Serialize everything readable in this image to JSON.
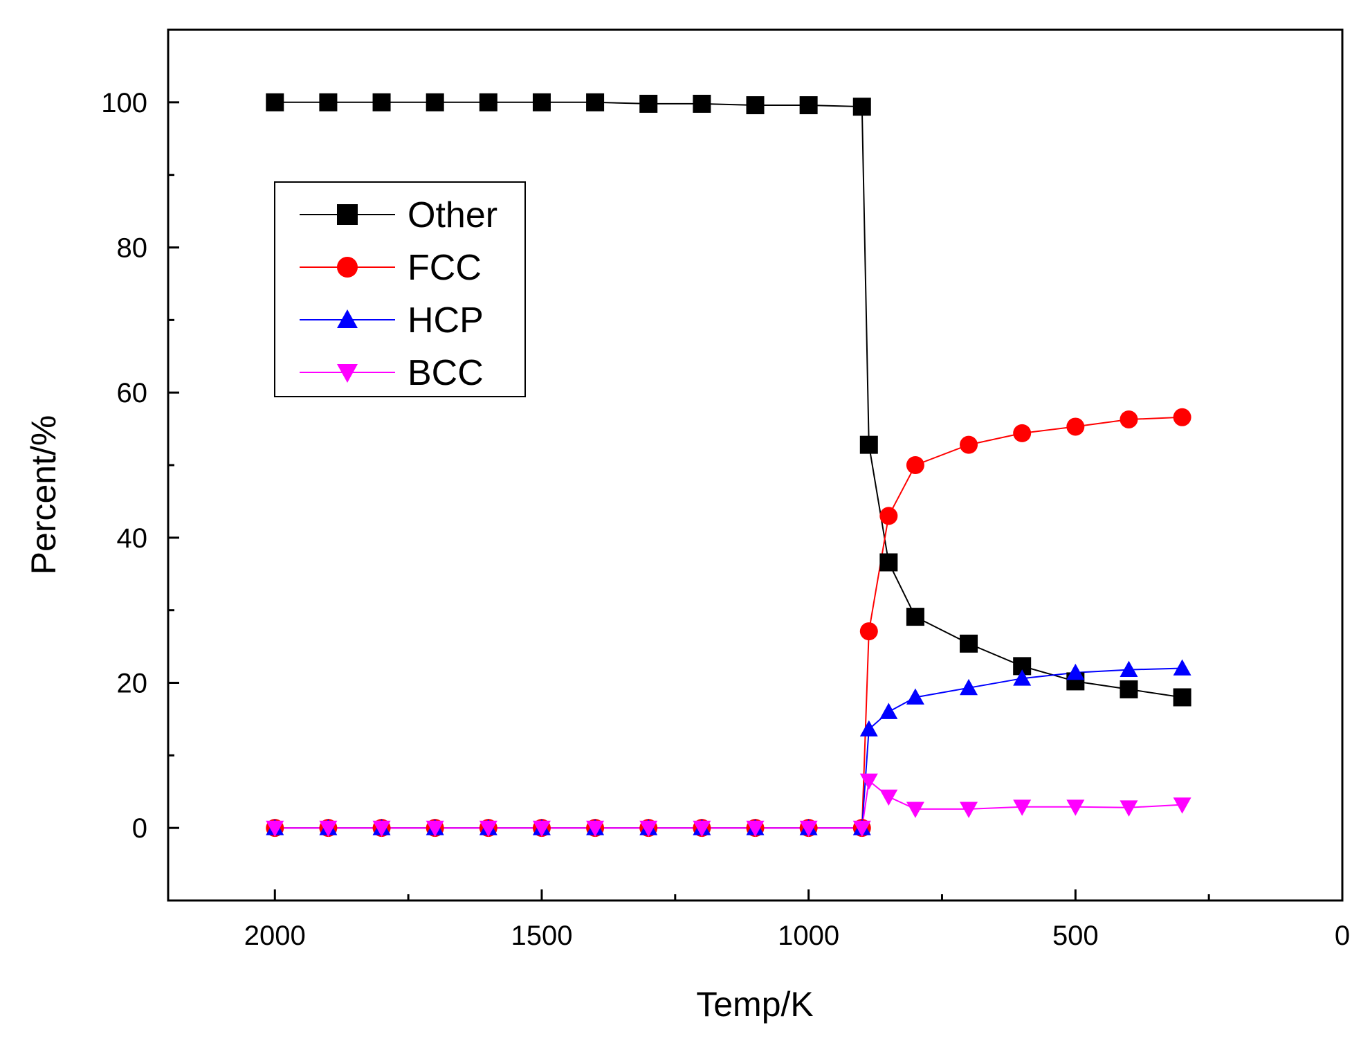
{
  "chart_data": {
    "type": "line",
    "title": "",
    "xlabel": "Temp/K",
    "ylabel": "Percent/%",
    "xlim": [
      2200,
      0
    ],
    "ylim": [
      -10,
      110
    ],
    "x_ticks": [
      2000,
      1500,
      1000,
      500,
      0
    ],
    "x_tick_labels": [
      "2000",
      "1500",
      "1000",
      "500",
      "0"
    ],
    "y_ticks": [
      0,
      20,
      40,
      60,
      80,
      100
    ],
    "y_tick_labels": [
      "0",
      "20",
      "40",
      "60",
      "80",
      "100"
    ],
    "x_minor_ticks": [
      1750,
      1250,
      750,
      250
    ],
    "y_minor_ticks": [
      -10,
      10,
      30,
      50,
      70,
      90,
      110
    ],
    "grid": false,
    "legend_position": "upper-left",
    "x": [
      2000,
      1900,
      1800,
      1700,
      1600,
      1500,
      1400,
      1300,
      1200,
      1100,
      1000,
      900,
      887,
      850,
      800,
      700,
      600,
      500,
      400,
      300
    ],
    "series": [
      {
        "name": "Other",
        "color": "#000000",
        "marker": "square",
        "values": [
          100,
          100,
          100,
          100,
          100,
          100,
          100,
          99.8,
          99.8,
          99.6,
          99.6,
          99.4,
          52.8,
          36.6,
          29.1,
          25.4,
          22.3,
          20.2,
          19.1,
          18.0
        ]
      },
      {
        "name": "FCC",
        "color": "#ff0000",
        "marker": "circle",
        "values": [
          0,
          0,
          0,
          0,
          0,
          0,
          0,
          0,
          0,
          0,
          0,
          0,
          27.1,
          43.0,
          50.0,
          52.8,
          54.4,
          55.3,
          56.3,
          56.6
        ]
      },
      {
        "name": "HCP",
        "color": "#0000ff",
        "marker": "triangle-up",
        "values": [
          0,
          0,
          0,
          0,
          0,
          0,
          0,
          0,
          0,
          0,
          0,
          0,
          13.6,
          16.0,
          18.0,
          19.3,
          20.6,
          21.4,
          21.8,
          22.0
        ]
      },
      {
        "name": "BCC",
        "color": "#ff00ff",
        "marker": "triangle-down",
        "values": [
          0,
          0,
          0,
          0,
          0,
          0,
          0,
          0,
          0,
          0,
          0,
          0,
          6.5,
          4.3,
          2.6,
          2.6,
          2.9,
          2.9,
          2.8,
          3.2
        ]
      }
    ]
  }
}
